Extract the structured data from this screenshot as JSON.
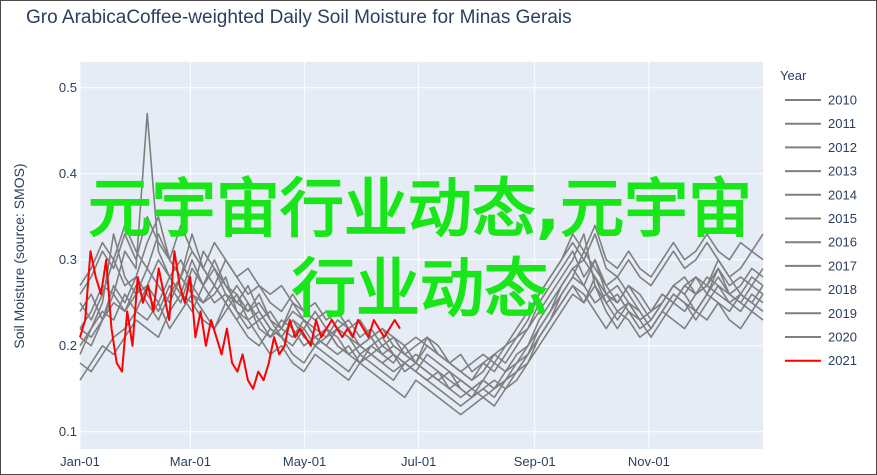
{
  "chart_data": {
    "type": "line",
    "title": "Gro ArabicaCoffee-weighted Daily Soil Moisture for Minas Gerais",
    "ylabel": "Soil Moisture (source: SMOS)",
    "xlabel": "",
    "x_ticks": [
      "Jan-01",
      "Mar-01",
      "May-01",
      "Jul-01",
      "Sep-01",
      "Nov-01"
    ],
    "x_tick_days": [
      0,
      59,
      120,
      181,
      243,
      304
    ],
    "x_range_days": [
      0,
      365
    ],
    "y_ticks": [
      "0.1",
      "0.2",
      "0.3",
      "0.4",
      "0.5"
    ],
    "y_tick_values": [
      0.1,
      0.2,
      0.3,
      0.4,
      0.5
    ],
    "ylim": [
      0.08,
      0.53
    ],
    "legend_title": "Year",
    "legend_position": "right",
    "grid": true,
    "plot_background": "#e5ecf6",
    "series_colors": {
      "default": "#7f7f7f",
      "2021": "#ff0000"
    },
    "series": [
      {
        "name": "2010",
        "values": [
          0.22,
          0.24,
          0.27,
          0.26,
          0.31,
          0.29,
          0.47,
          0.31,
          0.28,
          0.3,
          0.27,
          0.25,
          0.26,
          0.28,
          0.24,
          0.22,
          0.23,
          0.21,
          0.22,
          0.25,
          0.23,
          0.21,
          0.22,
          0.2,
          0.19,
          0.2,
          0.21,
          0.22,
          0.2,
          0.19,
          0.18,
          0.21,
          0.2,
          0.18,
          0.17,
          0.16,
          0.17,
          0.19,
          0.18,
          0.2,
          0.22,
          0.24,
          0.26,
          0.28,
          0.3,
          0.33,
          0.27,
          0.25,
          0.26,
          0.24,
          0.22,
          0.23,
          0.25,
          0.27,
          0.26,
          0.24,
          0.23,
          0.25,
          0.24,
          0.26,
          0.25,
          0.27
        ]
      },
      {
        "name": "2011",
        "values": [
          0.19,
          0.22,
          0.25,
          0.33,
          0.28,
          0.26,
          0.29,
          0.27,
          0.25,
          0.28,
          0.26,
          0.31,
          0.29,
          0.27,
          0.26,
          0.24,
          0.25,
          0.23,
          0.21,
          0.2,
          0.22,
          0.24,
          0.22,
          0.2,
          0.19,
          0.18,
          0.2,
          0.21,
          0.19,
          0.18,
          0.17,
          0.19,
          0.18,
          0.17,
          0.16,
          0.15,
          0.16,
          0.18,
          0.17,
          0.19,
          0.2,
          0.23,
          0.25,
          0.27,
          0.29,
          0.3,
          0.28,
          0.26,
          0.27,
          0.25,
          0.23,
          0.24,
          0.26,
          0.25,
          0.27,
          0.28,
          0.26,
          0.29,
          0.27,
          0.28,
          0.27,
          0.29
        ]
      },
      {
        "name": "2012",
        "values": [
          0.25,
          0.23,
          0.26,
          0.3,
          0.27,
          0.28,
          0.32,
          0.35,
          0.3,
          0.28,
          0.33,
          0.29,
          0.27,
          0.25,
          0.27,
          0.25,
          0.23,
          0.24,
          0.22,
          0.21,
          0.23,
          0.22,
          0.21,
          0.22,
          0.21,
          0.2,
          0.19,
          0.2,
          0.19,
          0.18,
          0.19,
          0.18,
          0.17,
          0.16,
          0.15,
          0.14,
          0.15,
          0.16,
          0.15,
          0.17,
          0.18,
          0.21,
          0.23,
          0.26,
          0.28,
          0.31,
          0.29,
          0.27,
          0.28,
          0.26,
          0.24,
          0.22,
          0.24,
          0.26,
          0.25,
          0.23,
          0.25,
          0.27,
          0.26,
          0.25,
          0.24,
          0.26
        ]
      },
      {
        "name": "2013",
        "values": [
          0.21,
          0.2,
          0.23,
          0.25,
          0.24,
          0.26,
          0.27,
          0.3,
          0.28,
          0.26,
          0.3,
          0.27,
          0.29,
          0.26,
          0.25,
          0.27,
          0.24,
          0.22,
          0.21,
          0.23,
          0.22,
          0.2,
          0.21,
          0.23,
          0.22,
          0.2,
          0.21,
          0.19,
          0.2,
          0.19,
          0.18,
          0.2,
          0.19,
          0.18,
          0.17,
          0.16,
          0.18,
          0.17,
          0.19,
          0.21,
          0.22,
          0.25,
          0.27,
          0.29,
          0.31,
          0.28,
          0.3,
          0.27,
          0.25,
          0.27,
          0.26,
          0.24,
          0.25,
          0.27,
          0.28,
          0.26,
          0.27,
          0.3,
          0.28,
          0.26,
          0.25,
          0.24
        ]
      },
      {
        "name": "2014",
        "values": [
          0.18,
          0.17,
          0.19,
          0.21,
          0.22,
          0.24,
          0.23,
          0.25,
          0.22,
          0.24,
          0.26,
          0.24,
          0.22,
          0.25,
          0.23,
          0.21,
          0.2,
          0.22,
          0.21,
          0.19,
          0.18,
          0.2,
          0.19,
          0.18,
          0.17,
          0.19,
          0.18,
          0.17,
          0.16,
          0.18,
          0.17,
          0.16,
          0.15,
          0.14,
          0.13,
          0.14,
          0.15,
          0.14,
          0.16,
          0.17,
          0.19,
          0.21,
          0.23,
          0.25,
          0.27,
          0.26,
          0.24,
          0.22,
          0.24,
          0.23,
          0.21,
          0.22,
          0.24,
          0.23,
          0.22,
          0.24,
          0.26,
          0.25,
          0.23,
          0.22,
          0.24,
          0.23
        ]
      },
      {
        "name": "2015",
        "values": [
          0.16,
          0.18,
          0.2,
          0.19,
          0.21,
          0.23,
          0.22,
          0.21,
          0.24,
          0.26,
          0.25,
          0.23,
          0.22,
          0.24,
          0.26,
          0.23,
          0.21,
          0.19,
          0.2,
          0.18,
          0.17,
          0.19,
          0.18,
          0.17,
          0.16,
          0.18,
          0.17,
          0.16,
          0.15,
          0.14,
          0.16,
          0.15,
          0.14,
          0.13,
          0.12,
          0.13,
          0.14,
          0.13,
          0.15,
          0.16,
          0.18,
          0.2,
          0.22,
          0.24,
          0.26,
          0.25,
          0.27,
          0.24,
          0.22,
          0.24,
          0.23,
          0.21,
          0.23,
          0.25,
          0.24,
          0.26,
          0.27,
          0.26,
          0.25,
          0.24,
          0.26,
          0.25
        ]
      },
      {
        "name": "2016",
        "values": [
          0.27,
          0.29,
          0.32,
          0.3,
          0.34,
          0.31,
          0.29,
          0.33,
          0.3,
          0.28,
          0.31,
          0.29,
          0.27,
          0.3,
          0.28,
          0.26,
          0.27,
          0.25,
          0.24,
          0.26,
          0.24,
          0.23,
          0.24,
          0.22,
          0.23,
          0.21,
          0.22,
          0.2,
          0.21,
          0.19,
          0.2,
          0.21,
          0.19,
          0.18,
          0.17,
          0.18,
          0.19,
          0.18,
          0.2,
          0.22,
          0.24,
          0.26,
          0.28,
          0.3,
          0.32,
          0.3,
          0.33,
          0.29,
          0.28,
          0.3,
          0.28,
          0.27,
          0.29,
          0.31,
          0.29,
          0.3,
          0.32,
          0.3,
          0.28,
          0.29,
          0.31,
          0.3
        ]
      },
      {
        "name": "2017",
        "values": [
          0.24,
          0.26,
          0.23,
          0.27,
          0.25,
          0.28,
          0.26,
          0.24,
          0.27,
          0.25,
          0.29,
          0.27,
          0.25,
          0.26,
          0.24,
          0.23,
          0.24,
          0.22,
          0.21,
          0.23,
          0.21,
          0.2,
          0.22,
          0.21,
          0.19,
          0.2,
          0.19,
          0.18,
          0.19,
          0.17,
          0.18,
          0.17,
          0.16,
          0.15,
          0.16,
          0.15,
          0.16,
          0.15,
          0.17,
          0.18,
          0.2,
          0.22,
          0.24,
          0.26,
          0.28,
          0.27,
          0.25,
          0.26,
          0.24,
          0.25,
          0.23,
          0.24,
          0.26,
          0.25,
          0.27,
          0.26,
          0.28,
          0.27,
          0.25,
          0.26,
          0.28,
          0.27
        ]
      },
      {
        "name": "2018",
        "values": [
          0.2,
          0.22,
          0.24,
          0.23,
          0.26,
          0.24,
          0.27,
          0.25,
          0.28,
          0.26,
          0.24,
          0.27,
          0.3,
          0.27,
          0.25,
          0.24,
          0.26,
          0.23,
          0.22,
          0.24,
          0.23,
          0.21,
          0.2,
          0.22,
          0.21,
          0.19,
          0.2,
          0.19,
          0.18,
          0.2,
          0.18,
          0.17,
          0.16,
          0.17,
          0.15,
          0.14,
          0.16,
          0.15,
          0.16,
          0.18,
          0.19,
          0.22,
          0.24,
          0.27,
          0.29,
          0.27,
          0.3,
          0.26,
          0.25,
          0.27,
          0.25,
          0.23,
          0.25,
          0.27,
          0.26,
          0.28,
          0.27,
          0.29,
          0.26,
          0.27,
          0.29,
          0.28
        ]
      },
      {
        "name": "2019",
        "values": [
          0.22,
          0.21,
          0.23,
          0.26,
          0.24,
          0.27,
          0.25,
          0.23,
          0.26,
          0.28,
          0.26,
          0.25,
          0.27,
          0.25,
          0.23,
          0.25,
          0.22,
          0.21,
          0.23,
          0.22,
          0.2,
          0.21,
          0.2,
          0.19,
          0.2,
          0.18,
          0.19,
          0.18,
          0.17,
          0.18,
          0.17,
          0.16,
          0.17,
          0.15,
          0.14,
          0.15,
          0.14,
          0.15,
          0.16,
          0.17,
          0.19,
          0.21,
          0.23,
          0.25,
          0.27,
          0.25,
          0.28,
          0.25,
          0.23,
          0.25,
          0.24,
          0.22,
          0.24,
          0.26,
          0.25,
          0.24,
          0.26,
          0.28,
          0.26,
          0.25,
          0.27,
          0.26
        ]
      },
      {
        "name": "2020",
        "values": [
          0.26,
          0.28,
          0.31,
          0.29,
          0.33,
          0.3,
          0.35,
          0.32,
          0.3,
          0.34,
          0.31,
          0.29,
          0.32,
          0.3,
          0.28,
          0.29,
          0.27,
          0.26,
          0.27,
          0.25,
          0.24,
          0.25,
          0.23,
          0.24,
          0.22,
          0.23,
          0.21,
          0.22,
          0.21,
          0.2,
          0.21,
          0.2,
          0.19,
          0.18,
          0.19,
          0.17,
          0.18,
          0.19,
          0.2,
          0.21,
          0.23,
          0.26,
          0.28,
          0.3,
          0.33,
          0.31,
          0.34,
          0.3,
          0.29,
          0.31,
          0.29,
          0.28,
          0.3,
          0.32,
          0.3,
          0.31,
          0.33,
          0.31,
          0.3,
          0.32,
          0.31,
          0.33
        ]
      },
      {
        "name": "2021",
        "values": [
          0.21,
          0.23,
          0.31,
          0.28,
          0.26,
          0.3,
          0.22,
          0.18,
          0.17,
          0.24,
          0.2,
          0.28,
          0.25,
          0.27,
          0.24,
          0.29,
          0.26,
          0.23,
          0.31,
          0.27,
          0.25,
          0.28,
          0.21,
          0.24,
          0.2,
          0.23,
          0.21,
          0.19,
          0.22,
          0.18,
          0.17,
          0.19,
          0.16,
          0.15,
          0.17,
          0.16,
          0.18,
          0.21,
          0.19,
          0.2,
          0.23,
          0.21,
          0.22,
          0.21,
          0.2,
          0.23,
          0.21,
          0.22,
          0.23,
          0.22,
          0.21,
          0.22,
          0.21,
          0.23,
          0.22,
          0.21,
          0.23,
          0.22,
          0.21,
          0.22,
          0.23,
          0.22
        ],
        "x_end_day": 171
      }
    ]
  },
  "watermark": {
    "line1": "元宇宙行业动态,元宇宙",
    "line2": "行业动态"
  }
}
